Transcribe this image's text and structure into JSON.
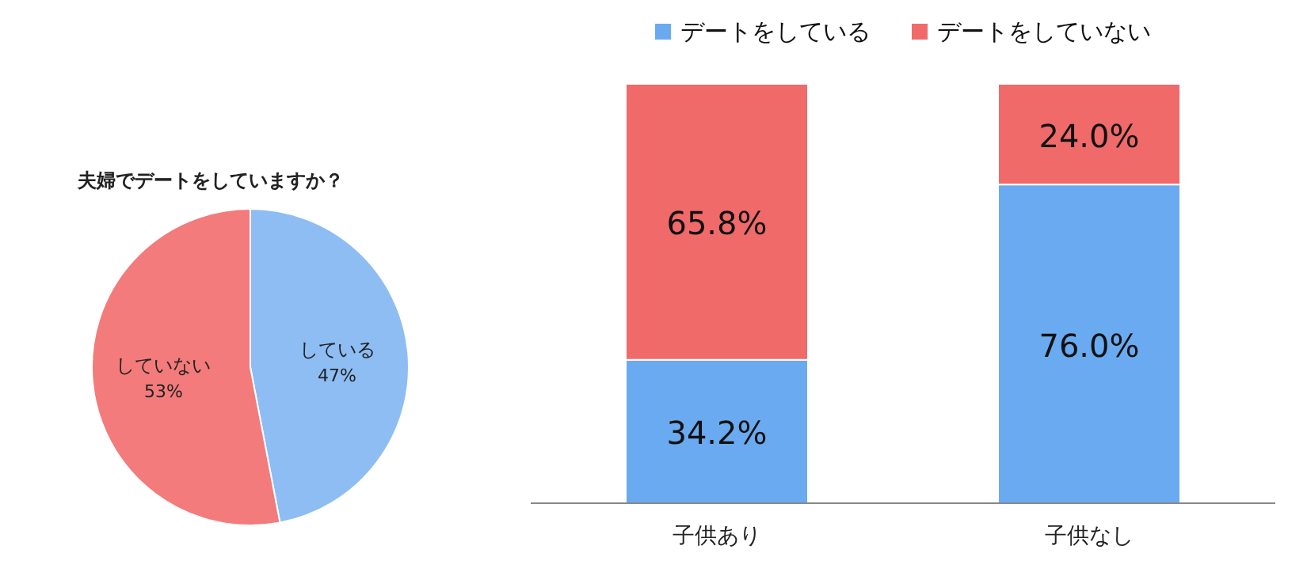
{
  "chart_data": [
    {
      "type": "pie",
      "title": "夫婦でデートをしていますか？",
      "categories": [
        "している",
        "していない"
      ],
      "values": [
        47,
        53
      ],
      "colors": [
        "#8dbdf3",
        "#f37b7b"
      ],
      "value_labels": [
        "47%",
        "53%"
      ]
    },
    {
      "type": "bar",
      "stacked": true,
      "legend": "top",
      "categories": [
        "子供あり",
        "子供なし"
      ],
      "series": [
        {
          "name": "デートをしている",
          "color": "#6aaaf0",
          "values": [
            34.2,
            76.0
          ],
          "value_labels": [
            "34.2%",
            "76.0%"
          ]
        },
        {
          "name": "デートをしていない",
          "color": "#f06a6a",
          "values": [
            65.8,
            24.0
          ],
          "value_labels": [
            "65.8%",
            "24.0%"
          ]
        }
      ]
    }
  ]
}
